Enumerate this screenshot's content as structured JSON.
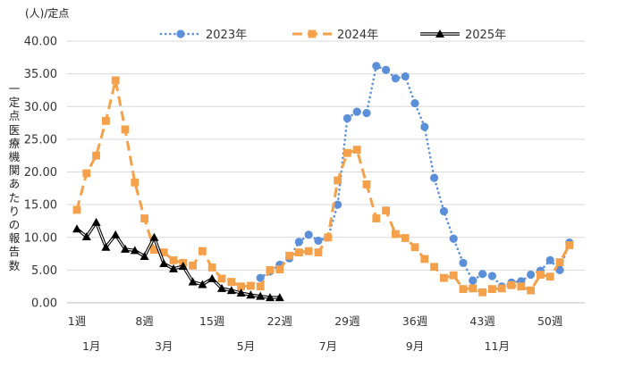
{
  "chart_data": {
    "type": "line",
    "unit": "(人)/定点",
    "ylabel": "一定点医療機関あたりの報告数",
    "ylim": [
      0,
      40
    ],
    "yticks": [
      "0.00",
      "5.00",
      "10.00",
      "15.00",
      "20.00",
      "25.00",
      "30.00",
      "35.00",
      "40.00"
    ],
    "grid": true,
    "legend_position": "top",
    "x_weeks": [
      1,
      2,
      3,
      4,
      5,
      6,
      7,
      8,
      9,
      10,
      11,
      12,
      13,
      14,
      15,
      16,
      17,
      18,
      19,
      20,
      21,
      22,
      23,
      24,
      25,
      26,
      27,
      28,
      29,
      30,
      31,
      32,
      33,
      34,
      35,
      36,
      37,
      38,
      39,
      40,
      41,
      42,
      43,
      44,
      45,
      46,
      47,
      48,
      49,
      50,
      51,
      52
    ],
    "week_tick_labels": [
      {
        "week": 1,
        "label": "1週"
      },
      {
        "week": 8,
        "label": "8週"
      },
      {
        "week": 15,
        "label": "15週"
      },
      {
        "week": 22,
        "label": "22週"
      },
      {
        "week": 29,
        "label": "29週"
      },
      {
        "week": 36,
        "label": "36週"
      },
      {
        "week": 43,
        "label": "43週"
      },
      {
        "week": 50,
        "label": "50週"
      }
    ],
    "month_tick_labels": [
      {
        "week": 2.5,
        "label": "1月"
      },
      {
        "week": 10,
        "label": "3月"
      },
      {
        "week": 18.5,
        "label": "5月"
      },
      {
        "week": 27,
        "label": "7月"
      },
      {
        "week": 36,
        "label": "9月"
      },
      {
        "week": 44.5,
        "label": "11月"
      }
    ],
    "series": [
      {
        "name": "2023年",
        "color": "#5b8fd9",
        "line_style": "dotted",
        "marker": "circle",
        "values": [
          null,
          null,
          null,
          null,
          null,
          null,
          null,
          null,
          null,
          null,
          null,
          null,
          null,
          null,
          null,
          null,
          null,
          null,
          null,
          3.8,
          4.8,
          5.8,
          6.8,
          9.3,
          10.4,
          9.5,
          10.0,
          15.0,
          28.2,
          29.2,
          29.0,
          36.2,
          35.6,
          34.3,
          34.6,
          30.5,
          26.9,
          19.1,
          14.0,
          9.8,
          6.1,
          3.4,
          4.4,
          4.1,
          2.5,
          3.1,
          3.3,
          4.3,
          4.9,
          6.5,
          5.0,
          9.2
        ]
      },
      {
        "name": "2024年",
        "color": "#f5a04a",
        "line_style": "dashed",
        "marker": "square",
        "values": [
          14.2,
          19.8,
          22.5,
          27.8,
          34.0,
          26.5,
          18.4,
          12.9,
          8.1,
          7.7,
          6.5,
          6.1,
          5.7,
          7.9,
          5.4,
          3.7,
          3.2,
          2.5,
          2.6,
          2.5,
          5.0,
          5.1,
          7.2,
          7.7,
          7.9,
          7.7,
          10.0,
          18.7,
          22.9,
          23.4,
          18.1,
          12.9,
          14.1,
          10.5,
          9.9,
          8.5,
          6.7,
          5.5,
          3.8,
          4.2,
          2.1,
          2.2,
          1.6,
          2.1,
          2.2,
          2.7,
          2.5,
          1.9,
          4.3,
          4.0,
          6.2,
          8.8
        ]
      },
      {
        "name": "2025年",
        "color": "#000000",
        "line_style": "solid",
        "marker": "triangle",
        "values": [
          11.3,
          10.1,
          12.3,
          8.5,
          10.4,
          8.2,
          8.0,
          7.1,
          10.0,
          6.0,
          5.2,
          5.6,
          3.2,
          2.8,
          3.7,
          2.2,
          1.9,
          1.5,
          1.2,
          1.0,
          0.8,
          0.8
        ]
      }
    ]
  }
}
